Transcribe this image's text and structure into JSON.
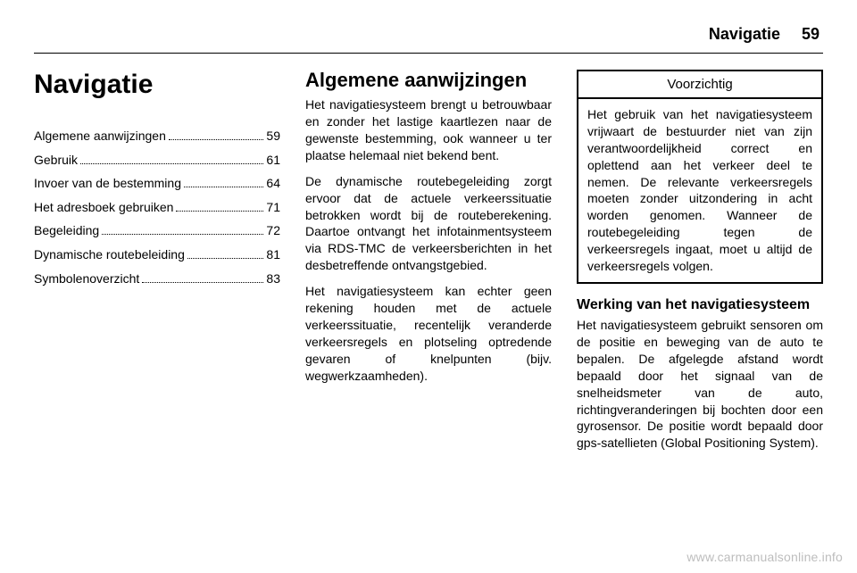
{
  "header": {
    "title": "Navigatie",
    "page_number": "59"
  },
  "column1": {
    "chapter_title": "Navigatie",
    "toc": [
      {
        "label": "Algemene aanwijzingen",
        "page": "59"
      },
      {
        "label": "Gebruik",
        "page": "61"
      },
      {
        "label": "Invoer van de bestemming",
        "page": "64"
      },
      {
        "label": "Het adresboek gebruiken",
        "page": "71"
      },
      {
        "label": "Begeleiding",
        "page": "72"
      },
      {
        "label": "Dynamische routebeleiding",
        "page": "81"
      },
      {
        "label": "Symbolenoverzicht",
        "page": "83"
      }
    ]
  },
  "column2": {
    "section_title": "Algemene aanwijzingen",
    "para1": "Het navigatiesysteem brengt u be­trouwbaar en zonder het lastige kaartlezen naar de gewenste bestem­ming, ook wanneer u ter plaatse he­lemaal niet bekend bent.",
    "para2": "De dynamische routebegeleiding zorgt ervoor dat de actuele verkeers­situatie betrokken wordt bij de route­berekening. Daartoe ontvangt het in­fotainmentsysteem via RDS-TMC de verkeersberichten in het desbetref­fende ontvangstgebied.",
    "para3": "Het navigatiesysteem kan echter geen rekening houden met de actuele verkeerssituatie, recentelijk veran­derde verkeersregels en plotseling optredende gevaren of knelpunten (bijv. wegwerkzaamheden)."
  },
  "column3": {
    "warning": {
      "title": "Voorzichtig",
      "body": "Het gebruik van het navigatiesys­teem vrijwaart de bestuurder niet van zijn verantwoordelijkheid cor­rect en oplettend aan het verkeer deel te nemen. De relevante ver­keersregels moeten zonder uit­zondering in acht worden geno­men. Wanneer de routebegelei­ding tegen de verkeersregels in­gaat, moet u altijd de verkeersre­gels volgen."
    },
    "sub_title": "Werking van het navigatiesysteem",
    "para1": "Het navigatiesysteem gebruikt sen­soren om de positie en beweging van de auto te bepalen. De afgelegde af­stand wordt bepaald door het signaal van de snelheidsmeter van de auto, richtingveranderingen bij bochten door een gyrosensor. De positie wordt bepaald door gps-satellieten (Global Positioning System)."
  },
  "watermark": "www.carmanualsonline.info"
}
